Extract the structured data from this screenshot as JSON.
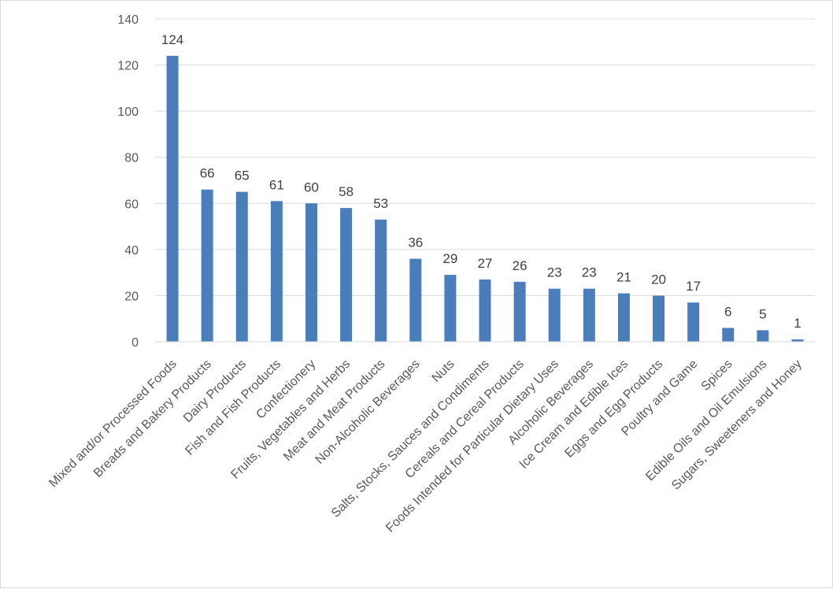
{
  "chart_data": {
    "type": "bar",
    "title": "",
    "xlabel": "",
    "ylabel": "",
    "ylim": [
      0,
      140
    ],
    "yticks": [
      0,
      20,
      40,
      60,
      80,
      100,
      120,
      140
    ],
    "grid": true,
    "legend": "none",
    "bar_color": "#4a7ebb",
    "grid_color": "#d9d9d9",
    "categories": [
      "Mixed and/or Processed Foods",
      "Breads and Bakery Products",
      "Dairy Products",
      "Fish and Fish Products",
      "Confectionery",
      "Fruits, Vegetables and Herbs",
      "Meat and Meat Products",
      "Non-Alcoholic Beverages",
      "Nuts",
      "Salts, Stocks, Sauces and Condiments",
      "Cereals and Cereal Products",
      "Foods Intended for Particular Dietary Uses",
      "Alcoholic Beverages",
      "Ice Cream and Edible Ices",
      "Eggs and Egg Products",
      "Poultry and Game",
      "Spices",
      "Edible Oils and Oil Emulsions",
      "Sugars, Sweeteners and Honey"
    ],
    "values": [
      124,
      66,
      65,
      61,
      60,
      58,
      53,
      36,
      29,
      27,
      26,
      23,
      23,
      21,
      20,
      17,
      6,
      5,
      1
    ]
  }
}
